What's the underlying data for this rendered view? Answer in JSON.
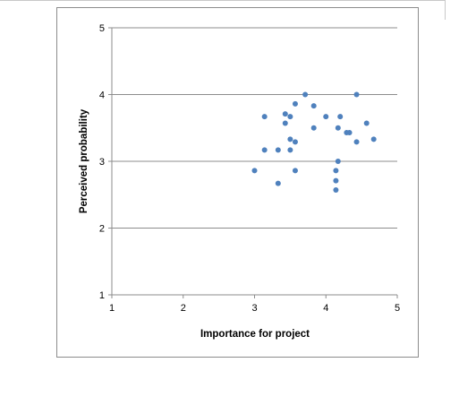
{
  "chart_data": {
    "type": "scatter",
    "title": "",
    "xlabel": "Importance for project",
    "ylabel": "Perceived probability",
    "xlim": [
      1,
      5
    ],
    "ylim": [
      1,
      5
    ],
    "x_ticks": [
      "1",
      "2",
      "3",
      "4",
      "5"
    ],
    "y_ticks": [
      "1",
      "2",
      "3",
      "4",
      "5"
    ],
    "grid": "horizontal major gridlines",
    "legend": "none",
    "marker_color": "#4f81bd",
    "points": [
      {
        "x": 3.0,
        "y": 2.86
      },
      {
        "x": 3.14,
        "y": 3.67
      },
      {
        "x": 3.14,
        "y": 3.17
      },
      {
        "x": 3.33,
        "y": 3.17
      },
      {
        "x": 3.33,
        "y": 2.67
      },
      {
        "x": 3.43,
        "y": 3.71
      },
      {
        "x": 3.43,
        "y": 3.57
      },
      {
        "x": 3.5,
        "y": 3.67
      },
      {
        "x": 3.5,
        "y": 3.33
      },
      {
        "x": 3.5,
        "y": 3.17
      },
      {
        "x": 3.57,
        "y": 3.86
      },
      {
        "x": 3.57,
        "y": 3.29
      },
      {
        "x": 3.57,
        "y": 2.86
      },
      {
        "x": 3.71,
        "y": 4.0
      },
      {
        "x": 3.83,
        "y": 3.83
      },
      {
        "x": 3.83,
        "y": 3.5
      },
      {
        "x": 4.0,
        "y": 3.67
      },
      {
        "x": 4.14,
        "y": 2.86
      },
      {
        "x": 4.14,
        "y": 2.71
      },
      {
        "x": 4.14,
        "y": 2.57
      },
      {
        "x": 4.17,
        "y": 3.5
      },
      {
        "x": 4.17,
        "y": 3.0
      },
      {
        "x": 4.2,
        "y": 3.67
      },
      {
        "x": 4.29,
        "y": 3.43
      },
      {
        "x": 4.33,
        "y": 3.43
      },
      {
        "x": 4.43,
        "y": 4.0
      },
      {
        "x": 4.43,
        "y": 3.29
      },
      {
        "x": 4.57,
        "y": 3.57
      },
      {
        "x": 4.67,
        "y": 3.33
      }
    ]
  }
}
